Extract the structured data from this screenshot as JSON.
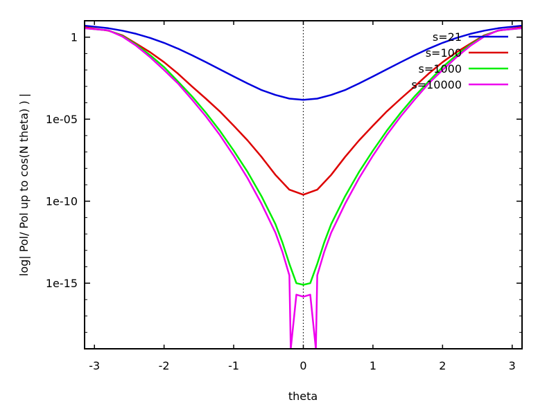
{
  "chart_data": {
    "type": "line",
    "title": "",
    "xlabel": "theta",
    "ylabel": "log| Pol/ Pol up to cos(N theta) ) |",
    "xlim": [
      -3.1416,
      3.1416
    ],
    "ylim": [
      1e-19,
      10
    ],
    "yscale": "log",
    "grid": false,
    "legend_position": "top-right",
    "x_ticks": [
      -3,
      -2,
      -1,
      0,
      1,
      2,
      3
    ],
    "x_tick_labels": [
      "-3",
      "-2",
      "-1",
      "0",
      "1",
      "2",
      "3"
    ],
    "y_ticks": [
      1,
      1e-05,
      1e-10,
      1e-15
    ],
    "y_tick_labels": [
      "1",
      "1e-05",
      "1e-10",
      "1e-15"
    ],
    "zero_line": true,
    "series": [
      {
        "name": "s=21",
        "color": "#0000dd",
        "x": [
          -3.14,
          -2.8,
          -2.6,
          -2.4,
          -2.2,
          -2.0,
          -1.8,
          -1.6,
          -1.4,
          -1.2,
          -1.0,
          -0.8,
          -0.6,
          -0.4,
          -0.2,
          0,
          0.2,
          0.4,
          0.6,
          0.8,
          1.0,
          1.2,
          1.4,
          1.6,
          1.8,
          2.0,
          2.2,
          2.4,
          2.6,
          2.8,
          3.14
        ],
        "y": [
          5,
          3.5,
          2.5,
          1.6,
          0.9,
          0.45,
          0.2,
          0.08,
          0.03,
          0.011,
          0.004,
          0.0015,
          0.0006,
          0.0003,
          0.00018,
          0.00015,
          0.00018,
          0.0003,
          0.0006,
          0.0015,
          0.004,
          0.011,
          0.03,
          0.08,
          0.2,
          0.45,
          0.9,
          1.6,
          2.5,
          3.5,
          5
        ]
      },
      {
        "name": "s=100",
        "color": "#dd0000",
        "x": [
          -3.14,
          -2.8,
          -2.6,
          -2.4,
          -2.2,
          -2.0,
          -1.8,
          -1.6,
          -1.4,
          -1.2,
          -1.0,
          -0.8,
          -0.6,
          -0.4,
          -0.2,
          0,
          0.2,
          0.4,
          0.6,
          0.8,
          1.0,
          1.2,
          1.4,
          1.6,
          1.8,
          2.0,
          2.2,
          2.4,
          2.6,
          2.8,
          3.14
        ],
        "y": [
          4,
          2.5,
          1.3,
          0.4,
          0.12,
          0.03,
          0.006,
          0.001,
          0.00018,
          3e-05,
          4e-06,
          5e-07,
          5e-08,
          4e-09,
          5e-10,
          2.5e-10,
          5e-10,
          4e-09,
          5e-08,
          5e-07,
          4e-06,
          3e-05,
          0.00018,
          0.001,
          0.006,
          0.03,
          0.12,
          0.4,
          1.3,
          2.5,
          4
        ]
      },
      {
        "name": "s=1000",
        "color": "#00ee00",
        "x": [
          -3.14,
          -2.8,
          -2.6,
          -2.4,
          -2.2,
          -2.0,
          -1.8,
          -1.6,
          -1.4,
          -1.2,
          -1.0,
          -0.8,
          -0.6,
          -0.4,
          -0.3,
          -0.2,
          -0.1,
          0,
          0.1,
          0.2,
          0.3,
          0.4,
          0.6,
          0.8,
          1.0,
          1.2,
          1.4,
          1.6,
          1.8,
          2.0,
          2.2,
          2.4,
          2.6,
          2.8,
          3.14
        ],
        "y": [
          3.5,
          2.6,
          1.2,
          0.35,
          0.08,
          0.015,
          0.002,
          0.00025,
          2.5e-05,
          2e-06,
          1.2e-07,
          6e-09,
          2e-10,
          4e-12,
          3e-13,
          1.5e-14,
          1e-15,
          8e-16,
          1e-15,
          1.5e-14,
          3e-13,
          4e-12,
          2e-10,
          6e-09,
          1.2e-07,
          2e-06,
          2.5e-05,
          0.00025,
          0.002,
          0.015,
          0.08,
          0.35,
          1.2,
          2.6,
          3.5
        ]
      },
      {
        "name": "s=10000",
        "color": "#ee00ee",
        "x": [
          -3.14,
          -2.8,
          -2.6,
          -2.4,
          -2.2,
          -2.0,
          -1.8,
          -1.6,
          -1.4,
          -1.2,
          -1.0,
          -0.8,
          -0.6,
          -0.4,
          -0.3,
          -0.2,
          -0.18,
          -0.1,
          0,
          0.1,
          0.18,
          0.2,
          0.3,
          0.4,
          0.6,
          0.8,
          1.0,
          1.2,
          1.4,
          1.6,
          1.8,
          2.0,
          2.2,
          2.4,
          2.6,
          2.8,
          3.14
        ],
        "y": [
          3.5,
          2.6,
          1.1,
          0.3,
          0.06,
          0.01,
          0.0015,
          0.00016,
          1.5e-05,
          1.1e-06,
          6e-08,
          2.5e-09,
          7e-11,
          1.2e-12,
          8e-14,
          3e-15,
          1e-19,
          2e-16,
          1.5e-16,
          2e-16,
          1e-19,
          3e-15,
          8e-14,
          1.2e-12,
          7e-11,
          2.5e-09,
          6e-08,
          1.1e-06,
          1.5e-05,
          0.00016,
          0.0015,
          0.01,
          0.06,
          0.3,
          1.1,
          2.6,
          3.5
        ]
      }
    ]
  }
}
